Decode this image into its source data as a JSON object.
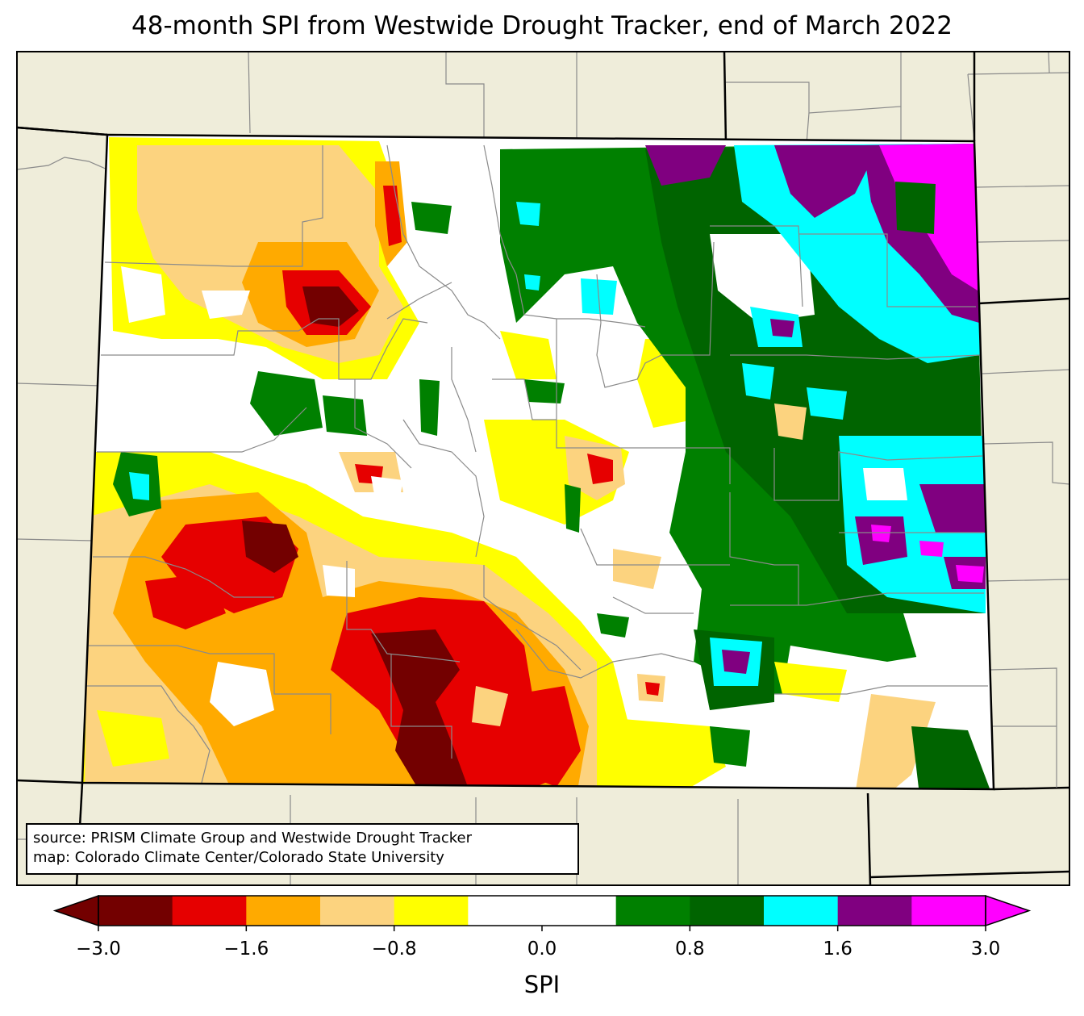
{
  "title": "48-month SPI from Westwide Drought Tracker, end of March 2022",
  "colors": {
    "land_background": "#efedda",
    "spi_bins": [
      "#730000",
      "#e60000",
      "#ffaa00",
      "#fcd37f",
      "#ffff00",
      "#ffffff",
      "#ffffff",
      "#008000",
      "#006400",
      "#00ffff",
      "#800080",
      "#ff00ff"
    ]
  },
  "source_box": {
    "line1": "source: PRISM Climate Group and Westwide Drought Tracker",
    "line2": "map: Colorado Climate Center/Colorado State University"
  },
  "colorbar": {
    "label": "SPI",
    "boundaries": [
      -3.0,
      -2.4,
      -1.6,
      -1.2,
      -0.8,
      -0.4,
      0.0,
      0.4,
      0.8,
      1.2,
      1.6,
      2.4,
      3.0
    ],
    "tick_labels": [
      "−3.0",
      "−1.6",
      "−0.8",
      "0.0",
      "0.8",
      "1.6",
      "3.0"
    ],
    "tick_values": [
      -3.0,
      -1.6,
      -0.8,
      0.0,
      0.8,
      1.6,
      3.0
    ],
    "extend": "both"
  }
}
